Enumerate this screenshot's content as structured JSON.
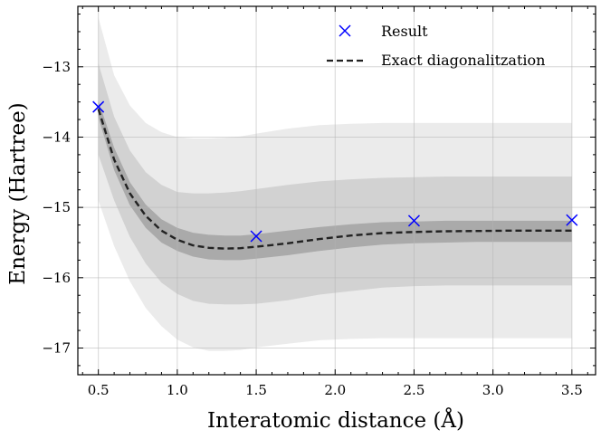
{
  "chart_data": {
    "type": "line",
    "title": "",
    "xlabel": "Interatomic distance (Å)",
    "ylabel": "Energy (Hartree)",
    "xlim": [
      0.37,
      3.65
    ],
    "ylim": [
      -17.38,
      -12.14
    ],
    "x_ticks": [
      0.5,
      1.0,
      1.5,
      2.0,
      2.5,
      3.0,
      3.5
    ],
    "x_tick_labels": [
      "0.5",
      "1.0",
      "1.5",
      "2.0",
      "2.5",
      "3.0",
      "3.5"
    ],
    "y_ticks": [
      -17,
      -16,
      -15,
      -14,
      -13
    ],
    "y_tick_labels": [
      "−17",
      "−16",
      "−15",
      "−14",
      "−13"
    ],
    "grid": true,
    "legend": {
      "position": "top-right",
      "entries": [
        {
          "label": "Result",
          "marker": "x",
          "color": "#0000ff"
        },
        {
          "label": "Exact diagonalitzation",
          "style": "dashed",
          "color": "#222222"
        }
      ]
    },
    "series": [
      {
        "name": "Exact diagonalitzation",
        "style": "dashed",
        "color": "#222222",
        "x": [
          0.5,
          0.6,
          0.7,
          0.8,
          0.9,
          1.0,
          1.1,
          1.2,
          1.3,
          1.4,
          1.5,
          1.7,
          1.9,
          2.1,
          2.3,
          2.5,
          2.7,
          2.9,
          3.1,
          3.3,
          3.5
        ],
        "y": [
          -13.6,
          -14.32,
          -14.8,
          -15.12,
          -15.33,
          -15.46,
          -15.54,
          -15.575,
          -15.585,
          -15.58,
          -15.56,
          -15.51,
          -15.45,
          -15.4,
          -15.365,
          -15.35,
          -15.34,
          -15.335,
          -15.33,
          -15.33,
          -15.33
        ]
      },
      {
        "name": "Result",
        "style": "marker",
        "marker": "x",
        "color": "#0000ff",
        "x": [
          0.5,
          1.5,
          2.5,
          3.5
        ],
        "y": [
          -13.57,
          -15.41,
          -15.19,
          -15.18
        ]
      }
    ],
    "bands": [
      {
        "name": "outer-band",
        "color": "#ebebeb",
        "x": [
          0.5,
          0.6,
          0.7,
          0.8,
          0.9,
          1.0,
          1.1,
          1.2,
          1.3,
          1.4,
          1.5,
          1.7,
          1.9,
          2.1,
          2.3,
          2.5,
          2.7,
          2.9,
          3.1,
          3.3,
          3.5
        ],
        "upper": [
          -12.3,
          -13.12,
          -13.55,
          -13.8,
          -13.93,
          -14.0,
          -14.02,
          -14.02,
          -14.01,
          -13.99,
          -13.95,
          -13.88,
          -13.83,
          -13.81,
          -13.8,
          -13.8,
          -13.8,
          -13.8,
          -13.8,
          -13.8,
          -13.8
        ],
        "lower": [
          -14.9,
          -15.55,
          -16.05,
          -16.43,
          -16.69,
          -16.88,
          -16.99,
          -17.04,
          -17.04,
          -17.03,
          -16.99,
          -16.94,
          -16.89,
          -16.87,
          -16.86,
          -16.86,
          -16.86,
          -16.86,
          -16.86,
          -16.86,
          -16.86
        ]
      },
      {
        "name": "middle-band",
        "color": "#d2d2d2",
        "x": [
          0.5,
          0.6,
          0.7,
          0.8,
          0.9,
          1.0,
          1.1,
          1.2,
          1.3,
          1.4,
          1.5,
          1.7,
          1.9,
          2.1,
          2.3,
          2.5,
          2.7,
          2.9,
          3.1,
          3.3,
          3.5
        ],
        "upper": [
          -12.95,
          -13.71,
          -14.19,
          -14.5,
          -14.68,
          -14.78,
          -14.8,
          -14.8,
          -14.79,
          -14.77,
          -14.74,
          -14.68,
          -14.63,
          -14.6,
          -14.58,
          -14.57,
          -14.56,
          -14.56,
          -14.56,
          -14.56,
          -14.56
        ],
        "lower": [
          -14.25,
          -14.9,
          -15.42,
          -15.8,
          -16.07,
          -16.23,
          -16.33,
          -16.37,
          -16.38,
          -16.38,
          -16.37,
          -16.32,
          -16.24,
          -16.19,
          -16.14,
          -16.12,
          -16.11,
          -16.11,
          -16.11,
          -16.11,
          -16.11
        ]
      },
      {
        "name": "inner-band",
        "color": "#aaaaaa",
        "x": [
          0.5,
          0.6,
          0.7,
          0.8,
          0.9,
          1.0,
          1.1,
          1.2,
          1.3,
          1.4,
          1.5,
          1.7,
          1.9,
          2.1,
          2.3,
          2.5,
          2.7,
          2.9,
          3.1,
          3.3,
          3.5
        ],
        "upper": [
          -13.48,
          -14.15,
          -14.64,
          -14.96,
          -15.17,
          -15.29,
          -15.36,
          -15.39,
          -15.4,
          -15.4,
          -15.38,
          -15.33,
          -15.28,
          -15.24,
          -15.21,
          -15.2,
          -15.19,
          -15.19,
          -15.19,
          -15.19,
          -15.19
        ],
        "lower": [
          -13.72,
          -14.47,
          -14.97,
          -15.29,
          -15.5,
          -15.62,
          -15.7,
          -15.74,
          -15.75,
          -15.75,
          -15.73,
          -15.68,
          -15.62,
          -15.57,
          -15.53,
          -15.51,
          -15.5,
          -15.49,
          -15.49,
          -15.49,
          -15.49
        ]
      }
    ]
  }
}
